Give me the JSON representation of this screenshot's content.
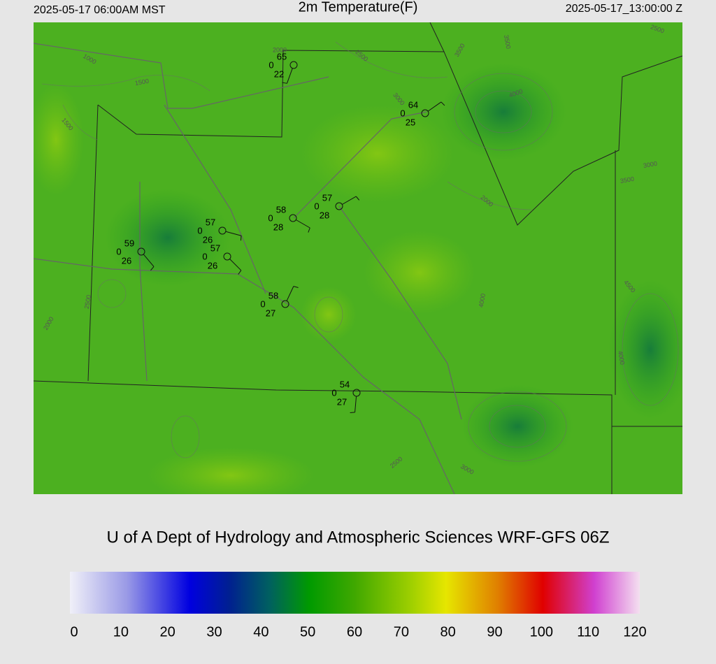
{
  "header": {
    "left": "2025-05-17 06:00AM MST",
    "title": "2m Temperature(F)",
    "right": "2025-05-17_13:00:00 Z"
  },
  "stations": [
    {
      "temp": "65",
      "wind": "0",
      "dewpoint": "22"
    },
    {
      "temp": "64",
      "wind": "0",
      "dewpoint": "25"
    },
    {
      "temp": "57",
      "wind": "0",
      "dewpoint": "28"
    },
    {
      "temp": "58",
      "wind": "0",
      "dewpoint": "28"
    },
    {
      "temp": "57",
      "wind": "0",
      "dewpoint": "26"
    },
    {
      "temp": "57",
      "wind": "0",
      "dewpoint": "26"
    },
    {
      "temp": "59",
      "wind": "0",
      "dewpoint": "26"
    },
    {
      "temp": "58",
      "wind": "0",
      "dewpoint": "27"
    },
    {
      "temp": "54",
      "wind": "0",
      "dewpoint": "27"
    }
  ],
  "contour_labels": [
    "1000",
    "1500",
    "1500",
    "2000",
    "2500",
    "3000",
    "3500",
    "3500",
    "4000",
    "3000",
    "3500",
    "2000",
    "2500",
    "2000",
    "2500",
    "3000",
    "4000",
    "4500",
    "4000",
    "2500"
  ],
  "credit": "U of A Dept of Hydrology and Atmospheric Sciences WRF-GFS 06Z",
  "colorbar": {
    "ticks": [
      "0",
      "10",
      "20",
      "30",
      "40",
      "50",
      "60",
      "70",
      "80",
      "90",
      "100",
      "110",
      "120"
    ]
  }
}
